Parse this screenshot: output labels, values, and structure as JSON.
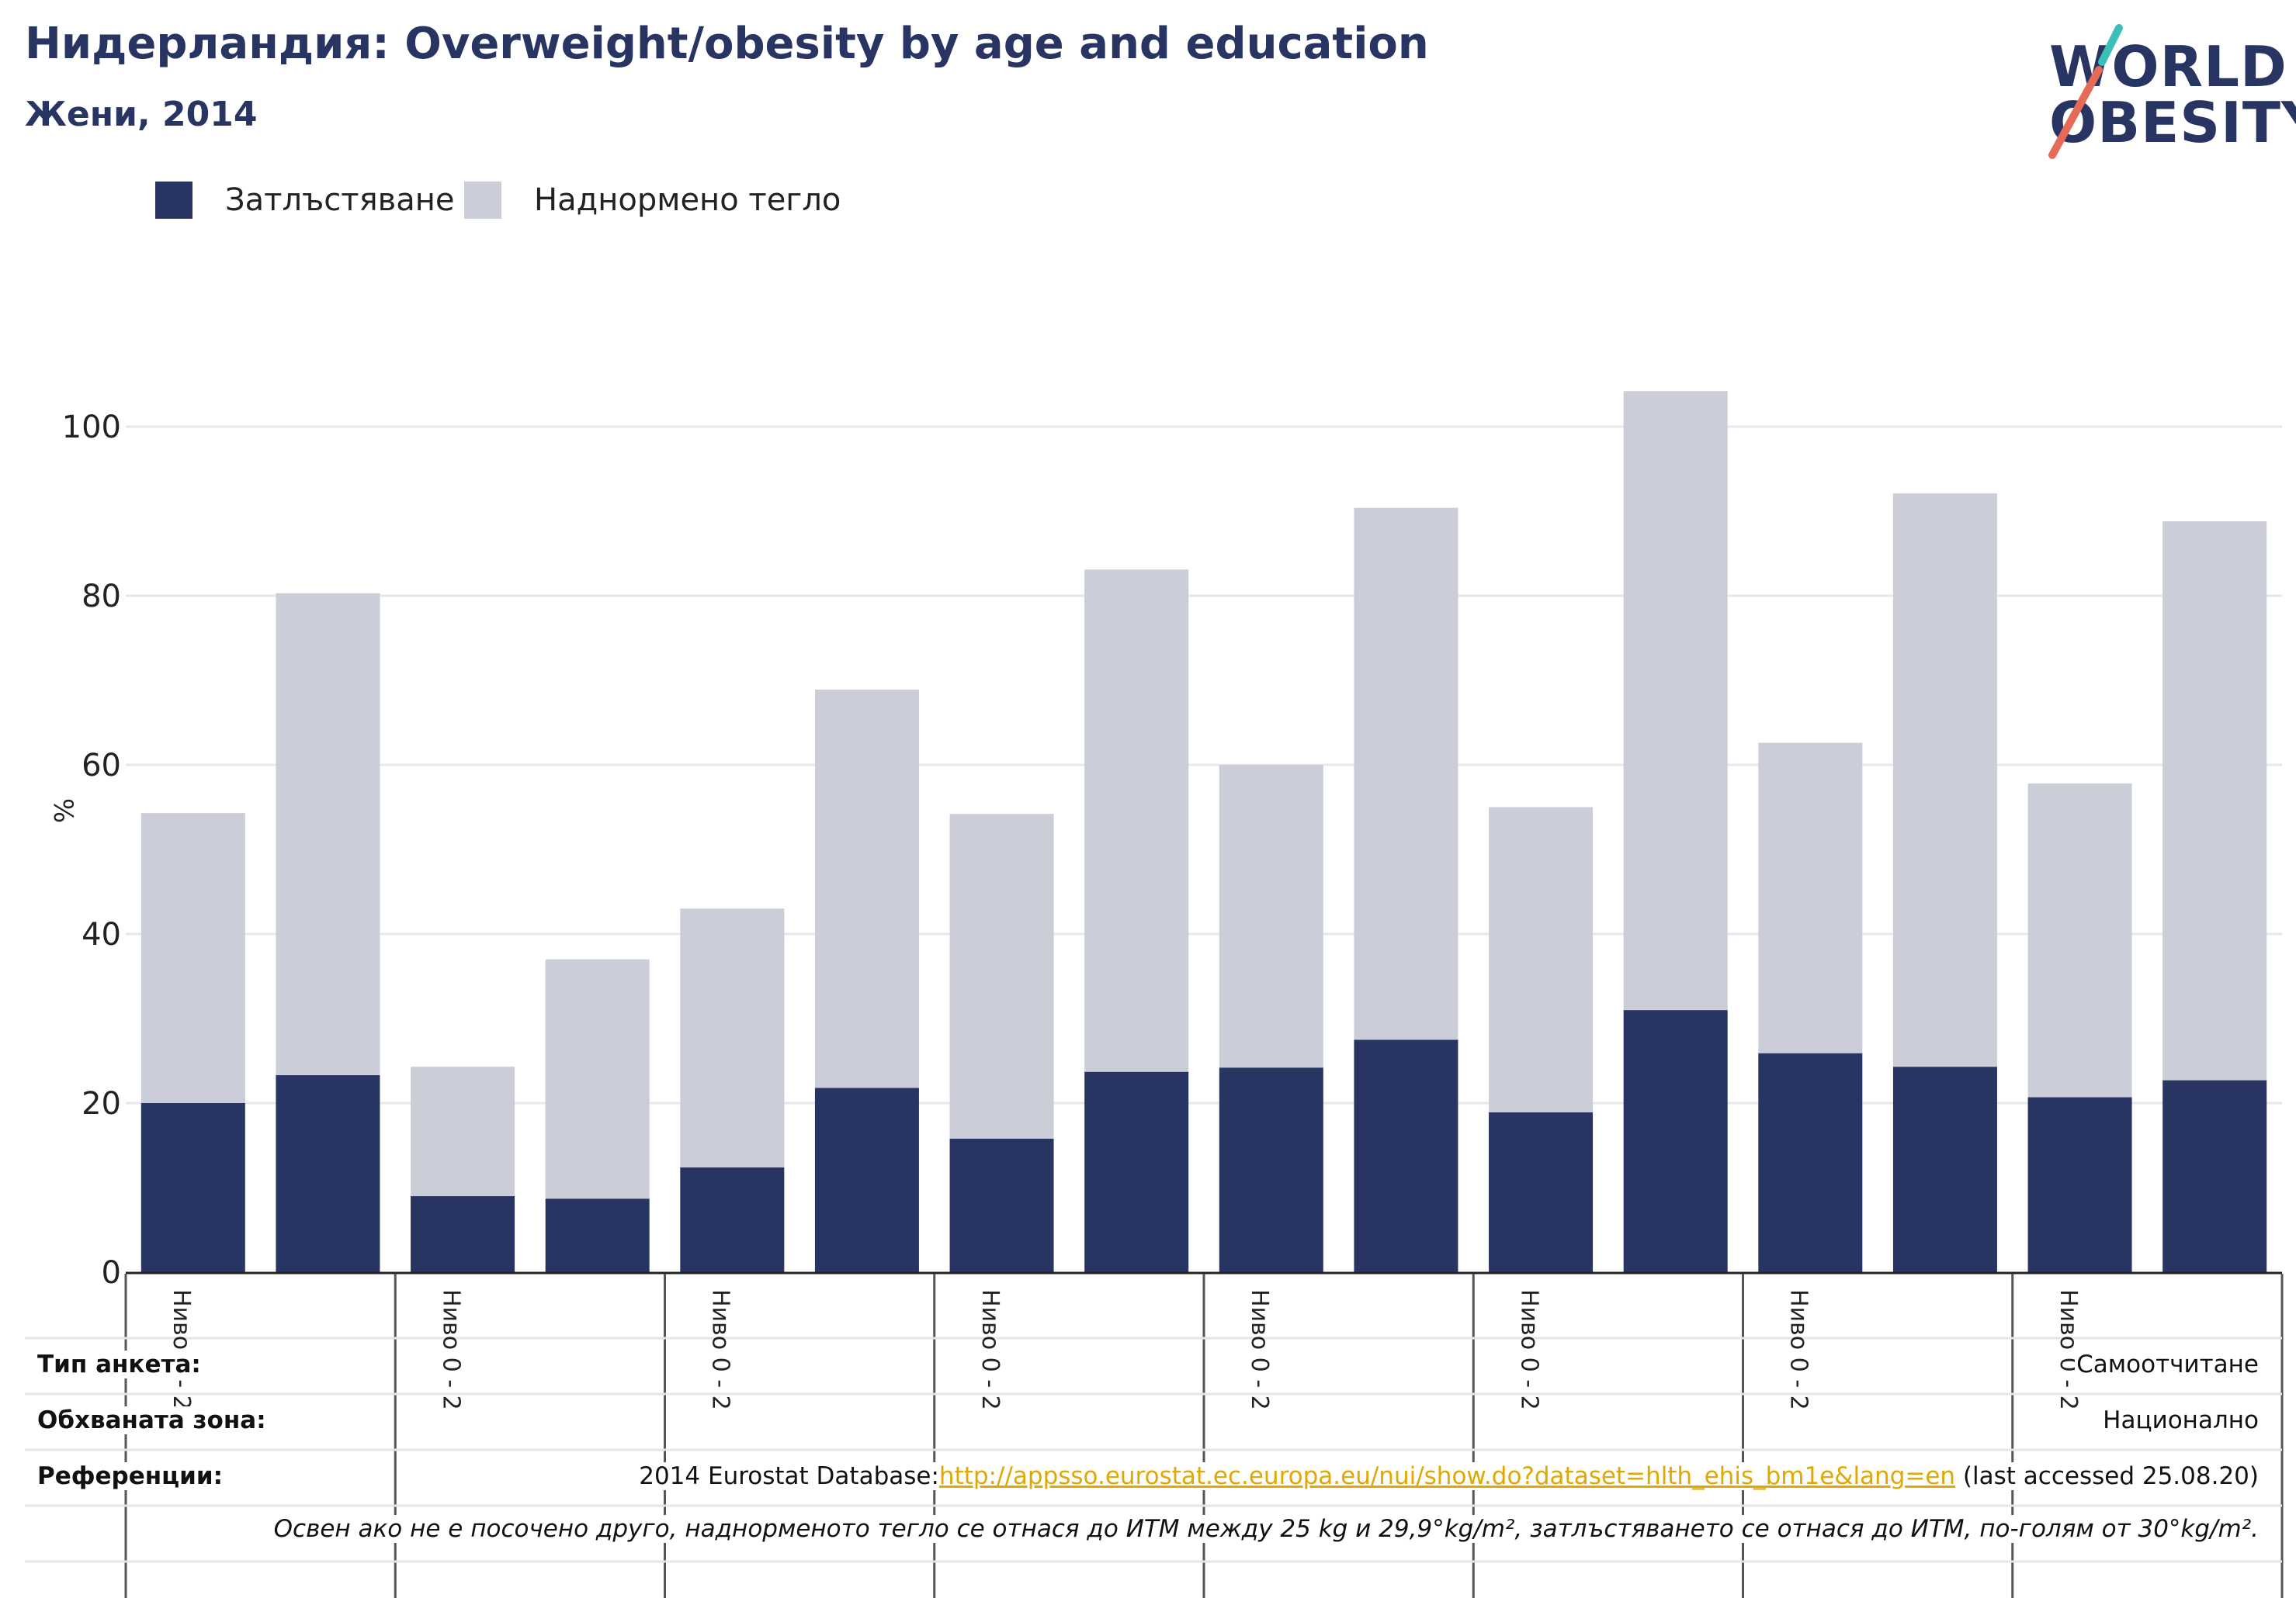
{
  "header": {
    "title": "Нидерландия: Overweight/obesity by age and education",
    "subtitle": "Жени, 2014"
  },
  "logo": {
    "line1": "WORLD",
    "line2": "OBESITY",
    "colors": {
      "navy": "#283562",
      "teal": "#3bbfb6",
      "coral": "#e56b58"
    }
  },
  "legend": {
    "items": [
      {
        "label": "Затлъстяване",
        "color": "#283562"
      },
      {
        "label": "Наднормено тегло",
        "color": "#cbcdd8"
      }
    ]
  },
  "chart_data": {
    "type": "bar",
    "stacked": true,
    "ylabel": "%",
    "ylim": [
      0,
      105
    ],
    "yticks": [
      0,
      20,
      40,
      60,
      80,
      100
    ],
    "grid": true,
    "legend_position": "top-left",
    "group_labels": [
      "Ниво 0 - 2",
      "Ниво 0 - 2",
      "Ниво 0 - 2",
      "Ниво 0 - 2",
      "Ниво 0 - 2",
      "Ниво 0 - 2",
      "Ниво 0 - 2",
      "Ниво 0 - 2"
    ],
    "series": [
      {
        "name": "Затлъстяване",
        "color": "#283562",
        "values": [
          20.0,
          23.3,
          9.0,
          8.7,
          12.4,
          21.8,
          15.8,
          23.7,
          24.2,
          27.5,
          18.9,
          31.0,
          25.9,
          24.3,
          20.7,
          22.7
        ]
      },
      {
        "name": "Наднормено тегло",
        "color": "#cbcdd8",
        "values": [
          34.3,
          57.0,
          15.3,
          28.3,
          30.6,
          47.1,
          38.4,
          59.4,
          35.8,
          62.9,
          36.1,
          73.2,
          36.7,
          67.8,
          37.1,
          66.1
        ]
      }
    ],
    "totals": [
      54.3,
      80.3,
      24.3,
      37.0,
      43.0,
      68.9,
      54.2,
      83.1,
      60.0,
      90.4,
      55.0,
      104.2,
      62.6,
      92.1,
      57.8,
      88.8
    ]
  },
  "info": {
    "survey_type_label": "Тип анкета:",
    "survey_type_value": "Самоотчитане",
    "coverage_label": "Обхваната зона:",
    "coverage_value": "Национално",
    "references_label": "Референции:",
    "references_prefix": "2014 Eurostat Database:",
    "references_link": "http://appsso.eurostat.ec.europa.eu/nui/show.do?dataset=hlth_ehis_bm1e&lang=en",
    "references_suffix": " (last accessed 25.08.20)",
    "note": "Освен ако не е посочено друго, наднорменото тегло се отнася до ИТМ между 25 kg и 29,9°kg/m², затлъстяването се отнася до ИТМ, по-голям от 30°kg/m²."
  }
}
